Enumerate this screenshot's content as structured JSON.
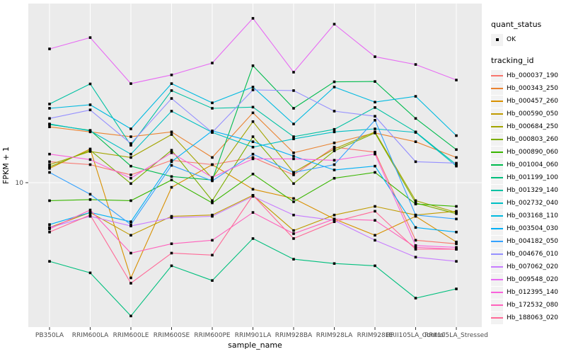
{
  "figure": {
    "xlabel": "sample_name",
    "ylabel": "FPKM + 1",
    "y_tick_label": "10"
  },
  "legend": {
    "quant_title": "quant_status",
    "quant_item_label": "OK",
    "tracking_title": "tracking_id"
  },
  "colors": {
    "panel_background": "#EBEBEB",
    "gridline": "#FFFFFF",
    "marker": "#000000",
    "tick_label": "#4D4D4D",
    "axis_text": "#000000",
    "legend_key_background": "#F2F2F2"
  },
  "chart_data": {
    "type": "line",
    "title": "",
    "xlabel": "sample_name",
    "ylabel": "FPKM + 1",
    "yscale": "log10",
    "ylim": [
      2,
      65
    ],
    "y_ticks": [
      10
    ],
    "grid": true,
    "legend_position": "right",
    "marker_shape": "black-square",
    "quant_status": "OK",
    "categories": [
      "PB350LA",
      "RRIM600LA",
      "RRIM600LE",
      "RRIM600SE",
      "RRIM600PE",
      "RRIM901LA",
      "RRIM928BA",
      "RRIM928LA",
      "RRIM928LE",
      "RRII105LA_Control",
      "RRII105LA_Stressed"
    ],
    "series": [
      {
        "name": "Hb_000037_190",
        "color": "#F8766D",
        "values": [
          12.6,
          12.2,
          10.9,
          12.8,
          12.2,
          13.2,
          10.9,
          14.8,
          14.0,
          5.3,
          5.1
        ]
      },
      {
        "name": "Hb_000343_250",
        "color": "#EA8331",
        "values": [
          18.5,
          17.5,
          16.6,
          17.5,
          13.2,
          21.6,
          13.9,
          15.5,
          17.3,
          15.7,
          13.2
        ]
      },
      {
        "name": "Hb_000457_260",
        "color": "#D89000",
        "values": [
          11.7,
          14.5,
          3.5,
          9.5,
          12.2,
          9.3,
          8.4,
          6.7,
          5.6,
          6.9,
          5.2
        ]
      },
      {
        "name": "Hb_000590_050",
        "color": "#C09B00",
        "values": [
          6.1,
          7.2,
          5.6,
          6.9,
          7.0,
          8.7,
          5.9,
          7.0,
          7.7,
          7.0,
          7.3
        ]
      },
      {
        "name": "Hb_000684_250",
        "color": "#A3A500",
        "values": [
          12.2,
          14.1,
          13.2,
          17.0,
          10.5,
          19.6,
          11.2,
          14.5,
          17.5,
          8.2,
          7.2
        ]
      },
      {
        "name": "Hb_000803_260",
        "color": "#7CAE00",
        "values": [
          11.9,
          14.3,
          9.9,
          14.3,
          8.2,
          16.6,
          9.9,
          14.2,
          17.3,
          8.0,
          7.1
        ]
      },
      {
        "name": "Hb_000890_060",
        "color": "#39B600",
        "values": [
          8.2,
          8.3,
          8.2,
          10.3,
          8.0,
          11.0,
          8.1,
          10.5,
          11.2,
          7.9,
          7.7
        ]
      },
      {
        "name": "Hb_001004_060",
        "color": "#00BB4E",
        "values": [
          19.0,
          17.8,
          12.0,
          10.7,
          10.3,
          36.3,
          22.7,
          30.4,
          30.5,
          20.3,
          14.4
        ]
      },
      {
        "name": "Hb_001199_100",
        "color": "#00BF7D",
        "values": [
          4.2,
          3.7,
          2.3,
          4.0,
          3.4,
          5.4,
          4.3,
          4.1,
          4.0,
          2.8,
          3.1
        ]
      },
      {
        "name": "Hb_001329_140",
        "color": "#00C1A3",
        "values": [
          23.8,
          29.7,
          15.1,
          27.6,
          22.7,
          23.0,
          16.6,
          18.0,
          22.9,
          17.5,
          12.2
        ]
      },
      {
        "name": "Hb_002732_040",
        "color": "#00BFC4",
        "values": [
          19.1,
          17.7,
          13.7,
          22.0,
          17.4,
          14.8,
          16.2,
          17.5,
          18.1,
          17.4,
          12.0
        ]
      },
      {
        "name": "Hb_003168_110",
        "color": "#00BAE0",
        "values": [
          22.7,
          23.6,
          18.1,
          29.8,
          24.1,
          28.7,
          19.1,
          28.7,
          24.3,
          25.9,
          16.8
        ]
      },
      {
        "name": "Hb_003504_030",
        "color": "#00B0F6",
        "values": [
          6.3,
          7.2,
          6.5,
          12.6,
          17.7,
          15.7,
          13.4,
          11.5,
          12.0,
          6.1,
          5.8
        ]
      },
      {
        "name": "Hb_004182_050",
        "color": "#35A2FF",
        "values": [
          11.2,
          8.8,
          6.3,
          12.1,
          10.2,
          13.7,
          11.2,
          12.2,
          19.9,
          7.0,
          6.7
        ]
      },
      {
        "name": "Hb_004676_010",
        "color": "#9590FF",
        "values": [
          20.3,
          22.3,
          15.4,
          25.3,
          17.4,
          27.8,
          27.6,
          22.0,
          20.8,
          12.6,
          12.4
        ]
      },
      {
        "name": "Hb_007062_020",
        "color": "#C77CFF",
        "values": [
          6.1,
          6.9,
          6.2,
          6.8,
          6.9,
          8.6,
          7.0,
          6.6,
          5.3,
          4.4,
          4.2
        ]
      },
      {
        "name": "Hb_009548_020",
        "color": "#E76BF3",
        "values": [
          43.7,
          49.5,
          29.8,
          32.8,
          37.4,
          61.2,
          33.8,
          57.4,
          40.1,
          36.8,
          31.0
        ]
      },
      {
        "name": "Hb_012395_140",
        "color": "#FA62DB",
        "values": [
          13.7,
          12.9,
          10.5,
          13.9,
          10.6,
          13.0,
          13.0,
          12.8,
          13.7,
          5.0,
          4.9
        ]
      },
      {
        "name": "Hb_172532_080",
        "color": "#FF62BC",
        "values": [
          6.0,
          7.4,
          4.6,
          5.1,
          5.3,
          7.2,
          5.7,
          6.7,
          6.6,
          4.9,
          4.8
        ]
      },
      {
        "name": "Hb_188063_020",
        "color": "#FF6A98",
        "values": [
          5.8,
          7.0,
          3.3,
          4.6,
          4.5,
          8.7,
          5.4,
          6.5,
          7.3,
          4.8,
          4.8
        ]
      }
    ]
  }
}
